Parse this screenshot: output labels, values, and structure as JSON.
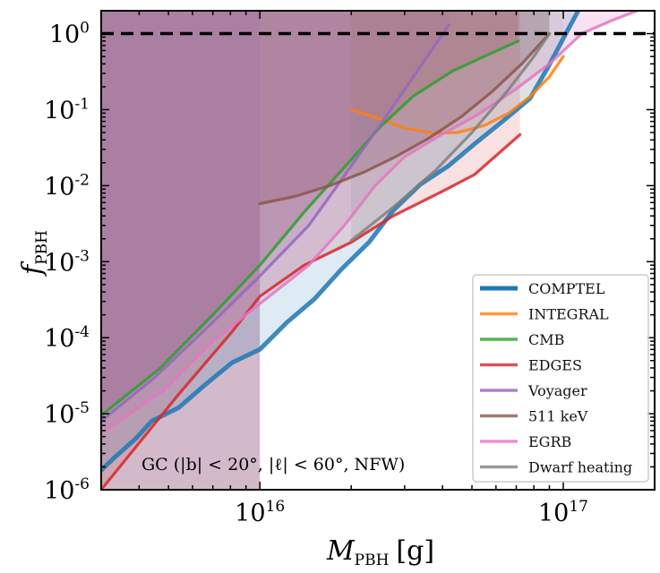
{
  "chart_data": {
    "type": "line",
    "title": "",
    "xlabel": "M_PBH [g]",
    "xlabel_main": "M",
    "xlabel_sub": "PBH",
    "xlabel_unit": "[g]",
    "ylabel": "f_PBH",
    "ylabel_main": "f",
    "ylabel_sub": "PBH",
    "xscale": "log",
    "yscale": "log",
    "xlim": [
      3000000000000000.0,
      2e+17
    ],
    "ylim": [
      1e-06,
      2.0
    ],
    "x_ticks": [
      {
        "value": 1e+16,
        "base": "10",
        "exp": "16"
      },
      {
        "value": 1e+17,
        "base": "10",
        "exp": "17"
      }
    ],
    "y_ticks": [
      {
        "value": 1.0,
        "base": "10",
        "exp": "0"
      },
      {
        "value": 0.1,
        "base": "10",
        "exp": "-1"
      },
      {
        "value": 0.01,
        "base": "10",
        "exp": "-2"
      },
      {
        "value": 0.001,
        "base": "10",
        "exp": "-3"
      },
      {
        "value": 0.0001,
        "base": "10",
        "exp": "-4"
      },
      {
        "value": 1e-05,
        "base": "10",
        "exp": "-5"
      },
      {
        "value": 1e-06,
        "base": "10",
        "exp": "-6"
      }
    ],
    "reference_line": {
      "y": 1.0,
      "style": "dashed",
      "color": "#000000"
    },
    "annotation": "GC (|b| < 20°, |ℓ| < 60°, NFW)",
    "legend_position": "lower-right",
    "series": [
      {
        "name": "COMPTEL",
        "color": "#1f77b4",
        "fill_color": "#1f77b4",
        "fill_alpha": 0.15,
        "line_width": "thick",
        "x": [
          3000000000000000.0,
          3300000000000000.0,
          3900000000000000.0,
          4400000000000000.0,
          5400000000000000.0,
          6600000000000000.0,
          8100000000000000.0,
          1e+16,
          1.23e+16,
          1.51e+16,
          1.86e+16,
          2.29e+16,
          2.75e+16,
          3.39e+16,
          4.17e+16,
          5.13e+16,
          6.31e+16,
          7.76e+16,
          8.9e+16,
          1.02e+17,
          1.12e+17
        ],
        "y": [
          1.8e-06,
          2.6e-06,
          4.7e-06,
          8e-06,
          1.2e-05,
          2.4e-05,
          4.7e-05,
          7e-05,
          0.00016,
          0.00032,
          0.0008,
          0.0018,
          0.0047,
          0.0105,
          0.018,
          0.036,
          0.07,
          0.14,
          0.36,
          1.0,
          2.0
        ]
      },
      {
        "name": "INTEGRAL",
        "color": "#ff7f0e",
        "fill_color": "#ff7f0e",
        "fill_alpha": 0.15,
        "x": [
          2e+16,
          2.5e+16,
          3e+16,
          3.7e+16,
          4.5e+16,
          5.5e+16,
          6.6e+16,
          7.8e+16,
          9e+16,
          1e+17
        ],
        "y": [
          0.1,
          0.075,
          0.057,
          0.049,
          0.05,
          0.062,
          0.09,
          0.15,
          0.27,
          0.5
        ]
      },
      {
        "name": "CMB",
        "color": "#2ca02c",
        "fill_color": "#8c564b",
        "fill_alpha": 0.3,
        "x": [
          3000000000000000.0,
          4700000000000000.0,
          7000000000000000.0,
          1e+16,
          1.4e+16,
          2e+16,
          2.5e+16,
          3.2e+16,
          4.3e+16,
          5.6e+16,
          7.1e+16
        ],
        "y": [
          9.5e-06,
          4e-05,
          0.0002,
          0.0009,
          0.0045,
          0.022,
          0.06,
          0.15,
          0.32,
          0.52,
          0.8
        ]
      },
      {
        "name": "EDGES",
        "color": "#d62728",
        "fill_color": "#d62728",
        "fill_alpha": 0.15,
        "x": [
          3000000000000000.0,
          5400000000000000.0,
          8100000000000000.0,
          1e+16,
          1.4e+16,
          2e+16,
          2.75e+16,
          3.9e+16,
          5.1e+16,
          7.2e+16
        ],
        "y": [
          1e-06,
          1.8e-05,
          0.00012,
          0.00035,
          0.0009,
          0.0018,
          0.004,
          0.008,
          0.014,
          0.047
        ]
      },
      {
        "name": "Voyager",
        "color": "#9467bd",
        "fill_color": "#9467bd",
        "fill_alpha": 0.15,
        "x": [
          3000000000000000.0,
          4500000000000000.0,
          7000000000000000.0,
          1e+16,
          1.45e+16,
          1.8e+16,
          2.3e+16,
          2.9e+16,
          3.5e+16,
          4.2e+16
        ],
        "y": [
          8e-06,
          3e-05,
          0.00016,
          0.00065,
          0.003,
          0.01,
          0.04,
          0.15,
          0.45,
          1.3
        ]
      },
      {
        "name": "511 keV",
        "color": "#8c564b",
        "fill_color": "#8c564b",
        "fill_alpha": 0.3,
        "x": [
          1e+16,
          1.3e+16,
          1.7e+16,
          2.2e+16,
          2.8e+16,
          3.6e+16,
          4.6e+16,
          5.8e+16,
          7.3e+16,
          9e+16
        ],
        "y": [
          0.0058,
          0.0072,
          0.01,
          0.015,
          0.024,
          0.042,
          0.08,
          0.17,
          0.4,
          1.0
        ]
      },
      {
        "name": "EGRB",
        "color": "#e377c2",
        "fill_color": "#e377c2",
        "fill_alpha": 0.15,
        "x": [
          3000000000000000.0,
          4800000000000000.0,
          7000000000000000.0,
          1e+16,
          1.45e+16,
          1.9e+16,
          2.4e+16,
          3e+16,
          3.9e+16,
          5.2e+16,
          6.9e+16,
          9e+16,
          1.15e+17,
          1.45e+17,
          1.75e+17
        ],
        "y": [
          5.5e-06,
          2e-05,
          9e-05,
          0.00028,
          0.0009,
          0.003,
          0.01,
          0.024,
          0.045,
          0.085,
          0.18,
          0.4,
          1.0,
          1.5,
          2.0
        ]
      },
      {
        "name": "Dwarf heating",
        "color": "#7f7f7f",
        "fill_color": "#7f7f7f",
        "fill_alpha": 0.15,
        "x": [
          2e+16,
          2.8e+16,
          3.8e+16,
          5e+16,
          6.5e+16,
          8e+16,
          9e+16
        ],
        "y": [
          0.0019,
          0.0055,
          0.016,
          0.05,
          0.17,
          0.5,
          1.0
        ]
      }
    ],
    "excluded_bands": [
      {
        "name": "511 keV band",
        "x_from": 3000000000000000.0,
        "x_to": 1e+16,
        "color": "#8c567a",
        "alpha": 0.45
      },
      {
        "name": "CMB band",
        "x_from": 1e+16,
        "x_to": 2e+16,
        "color": "#8c564b",
        "alpha": 0.12
      },
      {
        "name": "INTEGRAL band",
        "x_from": 2e+16,
        "x_to": 7.2e+16,
        "color": "#8c564b",
        "alpha": 0.12
      }
    ]
  },
  "legend": {
    "items": [
      {
        "label": "COMPTEL",
        "color": "#1f77b4"
      },
      {
        "label": "INTEGRAL",
        "color": "#ff7f0e"
      },
      {
        "label": "CMB",
        "color": "#2ca02c"
      },
      {
        "label": "EDGES",
        "color": "#d62728"
      },
      {
        "label": "Voyager",
        "color": "#9467bd"
      },
      {
        "label": "511 keV",
        "color": "#8c564b"
      },
      {
        "label": "EGRB",
        "color": "#e377c2"
      },
      {
        "label": "Dwarf heating",
        "color": "#7f7f7f"
      }
    ]
  }
}
